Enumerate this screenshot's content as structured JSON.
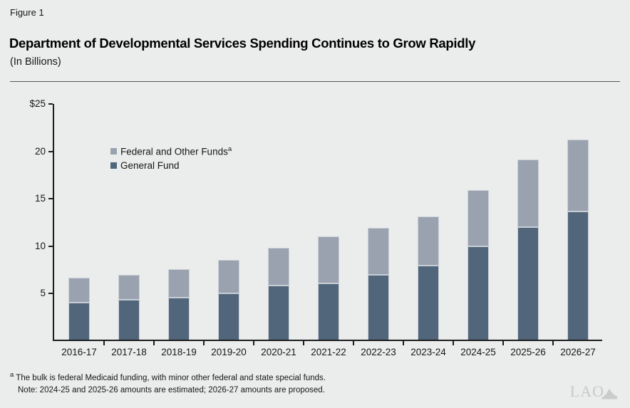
{
  "figure_label": "Figure 1",
  "title": "Department of Developmental Services Spending Continues to Grow Rapidly",
  "subtitle": "(In Billions)",
  "legend": {
    "federal": {
      "label": "Federal and Other Funds",
      "superscript": "a",
      "color": "#9aa2af"
    },
    "general": {
      "label": "General Fund",
      "color": "#51667a"
    }
  },
  "chart_data": {
    "type": "bar",
    "stacked": true,
    "title": "Department of Developmental Services Spending Continues to Grow Rapidly",
    "units": "Billions of dollars",
    "categories": [
      "2016-17",
      "2017-18",
      "2018-19",
      "2019-20",
      "2020-21",
      "2021-22",
      "2022-23",
      "2023-24",
      "2024-25",
      "2025-26",
      "2026-27"
    ],
    "series": [
      {
        "name": "General Fund",
        "color": "#51667a",
        "values": [
          3.9,
          4.2,
          4.4,
          4.9,
          5.7,
          5.9,
          6.8,
          7.8,
          9.8,
          11.9,
          13.5
        ]
      },
      {
        "name": "Federal and Other Funds",
        "color": "#9aa2af",
        "values": [
          2.6,
          2.6,
          3.0,
          3.5,
          4.0,
          5.0,
          5.0,
          5.2,
          6.0,
          7.1,
          7.6
        ]
      }
    ],
    "totals": [
      6.5,
      6.8,
      7.4,
      8.4,
      9.7,
      10.9,
      11.8,
      13.0,
      15.8,
      19.0,
      21.1
    ],
    "ylim": [
      0,
      25
    ],
    "yticks": [
      {
        "value": 5,
        "label": "5"
      },
      {
        "value": 10,
        "label": "10"
      },
      {
        "value": 15,
        "label": "15"
      },
      {
        "value": 20,
        "label": "20"
      },
      {
        "value": 25,
        "label": "$25"
      }
    ],
    "grid": false,
    "legend_position": "upper-left-inside"
  },
  "footnotes": {
    "a_marker": "a",
    "a_text": "The bulk is federal Medicaid funding, with minor other federal and state special funds.",
    "note": "Note: 2024-25 and 2025-26 amounts are estimated; 2026-27 amounts are proposed."
  },
  "logo": {
    "text": "LAO"
  },
  "colors": {
    "background": "#ebedec",
    "axis": "#1c1c1c",
    "bar_border": "#ccd1d9"
  }
}
